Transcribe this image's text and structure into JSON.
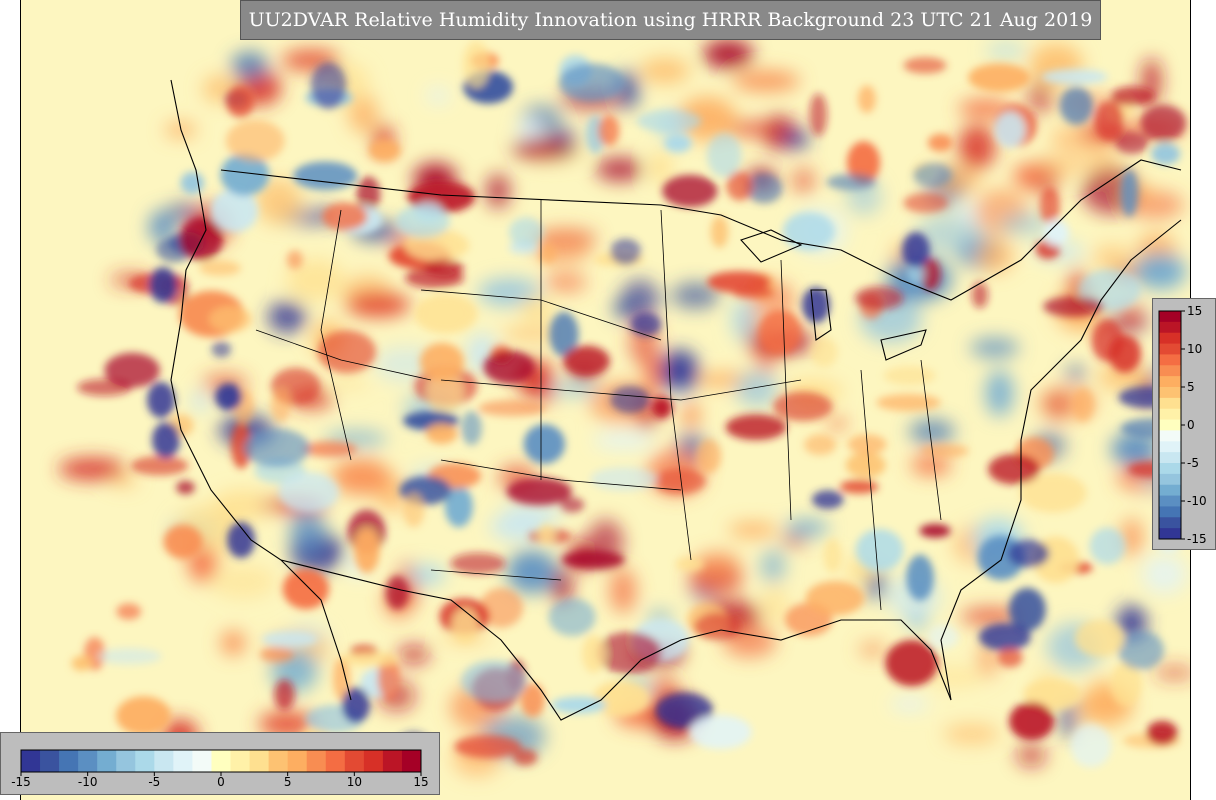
{
  "title": "UU2DVAR Relative Humidity Innovation using HRRR Background 23 UTC 21 Aug 2019",
  "colorbar": {
    "min": -15,
    "max": 15,
    "horizontal_ticks": [
      "-15",
      "-10",
      "-5",
      "0",
      "5",
      "10",
      "15"
    ],
    "vertical_ticks": [
      "15",
      "10",
      "5",
      "0",
      "-5",
      "-10",
      "-15"
    ],
    "colors": [
      "#313695",
      "#3a539f",
      "#4575b4",
      "#5b8fc2",
      "#74add1",
      "#95c5de",
      "#abd9e9",
      "#c9e7f1",
      "#e0f3f8",
      "#f3fbf8",
      "#ffffbf",
      "#fff1a8",
      "#fee090",
      "#fdc272",
      "#fdae61",
      "#f88d52",
      "#f46d43",
      "#e34a33",
      "#d73027",
      "#bb1526",
      "#a50026"
    ]
  },
  "map": {
    "background_color": "#fdf6c0",
    "border_color": "#000000"
  }
}
